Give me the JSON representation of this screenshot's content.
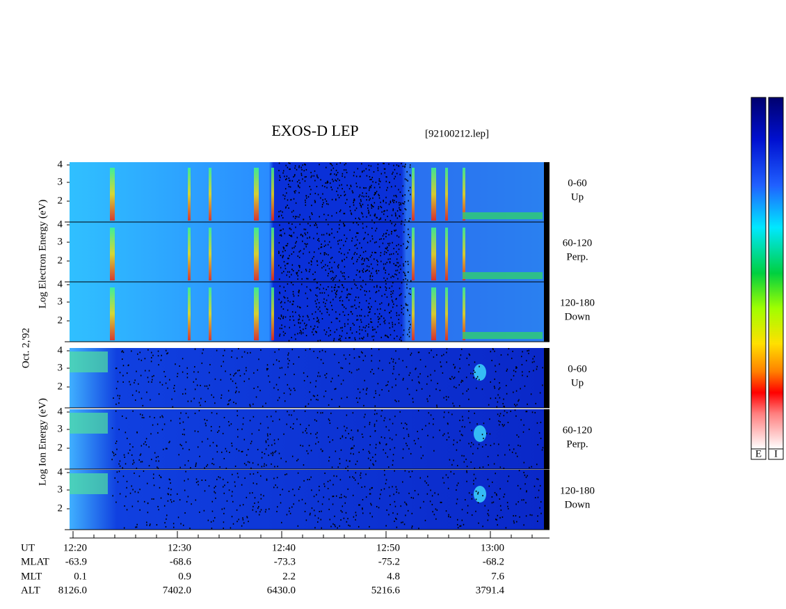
{
  "title": "EXOS-D LEP",
  "file": "[92100212.lep]",
  "date": "Oct. 2,'92",
  "electron_label": "Log Electron Energy (eV)",
  "ion_label": "Log Ion Energy (eV)",
  "yticks": [
    "4",
    "3",
    "2"
  ],
  "panels": [
    {
      "angle": "0-60",
      "dir": "Up"
    },
    {
      "angle": "60-120",
      "dir": "Perp."
    },
    {
      "angle": "120-180",
      "dir": "Down"
    }
  ],
  "colorbars": [
    "E",
    "I"
  ],
  "time_row": {
    "label": "UT",
    "values": [
      "12:20",
      "12:30",
      "12:40",
      "12:50",
      "13:00"
    ]
  },
  "rows": [
    {
      "label": "MLAT",
      "values": [
        "-63.9",
        "-68.6",
        "-73.3",
        "-75.2",
        "-68.2"
      ]
    },
    {
      "label": "MLT",
      "values": [
        "0.1",
        "0.9",
        "2.2",
        "4.8",
        "7.6"
      ]
    },
    {
      "label": "ALT",
      "values": [
        "8126.0",
        "7402.0",
        "6430.0",
        "5216.6",
        "3791.4"
      ]
    }
  ]
}
